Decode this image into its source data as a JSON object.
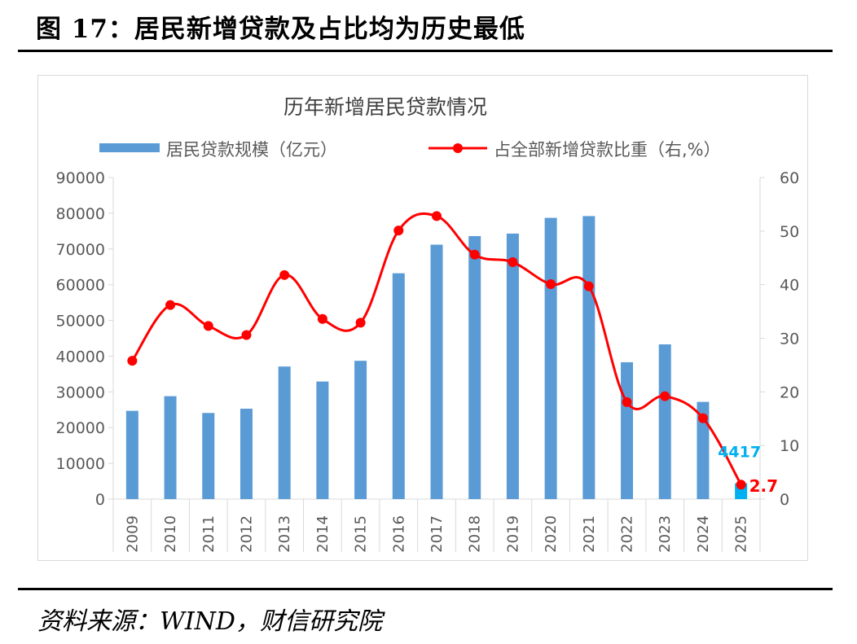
{
  "figure_title": "图 17：居民新增贷款及占比均为历史最低",
  "source": "资料来源：WIND，财信研究院",
  "colors": {
    "bar": "#5b9bd5",
    "bar_highlight": "#00b0f0",
    "line": "#ff0000",
    "axis": "#d9d9d9",
    "text": "#595959",
    "label_blue": "#00b0f0",
    "label_red": "#ff0000"
  },
  "chart_data": {
    "type": "bar",
    "title": "历年新增居民贷款情况",
    "categories": [
      "2009",
      "2010",
      "2011",
      "2012",
      "2013",
      "2014",
      "2015",
      "2016",
      "2017",
      "2018",
      "2019",
      "2020",
      "2021",
      "2022",
      "2023",
      "2024",
      "2025"
    ],
    "series": [
      {
        "name": "居民贷款规模（亿元）",
        "type": "bar",
        "axis": "left",
        "values": [
          24700,
          28800,
          24100,
          25300,
          37100,
          32900,
          38700,
          63200,
          71200,
          73600,
          74300,
          78700,
          79200,
          38300,
          43300,
          27200,
          4417
        ]
      },
      {
        "name": "占全部新增贷款比重（右,%）",
        "type": "line",
        "axis": "right",
        "values": [
          25.8,
          36.2,
          32.3,
          30.6,
          41.8,
          33.6,
          32.9,
          50.1,
          52.8,
          45.6,
          44.2,
          40.1,
          39.7,
          18.1,
          19.2,
          15.1,
          2.7
        ]
      }
    ],
    "y_left": {
      "min": 0,
      "max": 90000,
      "step": 10000,
      "ticks": [
        "0",
        "10000",
        "20000",
        "30000",
        "40000",
        "50000",
        "60000",
        "70000",
        "80000",
        "90000"
      ]
    },
    "y_right": {
      "min": 0,
      "max": 60,
      "step": 10,
      "ticks": [
        "0",
        "10",
        "20",
        "30",
        "40",
        "50",
        "60"
      ]
    },
    "annotations": {
      "bar_last": "4417",
      "line_last": "2.7"
    },
    "legend_position": "top",
    "grid": false
  }
}
